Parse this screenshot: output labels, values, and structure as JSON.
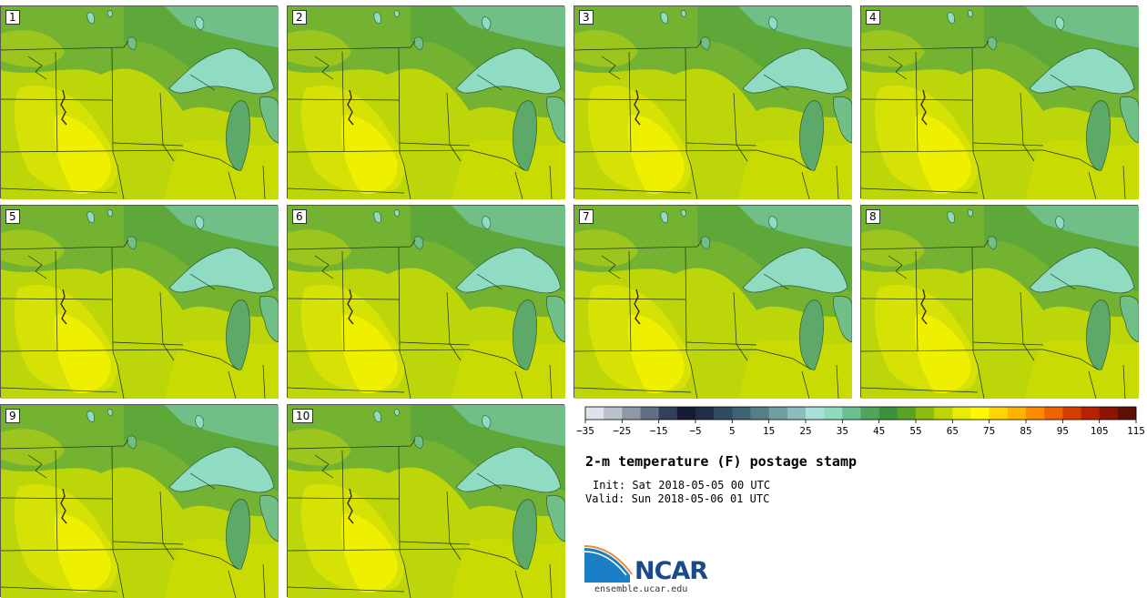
{
  "panels": [
    "1",
    "2",
    "3",
    "4",
    "5",
    "6",
    "7",
    "8",
    "9",
    "10"
  ],
  "colorbar": {
    "colors": [
      "#dde3ea",
      "#b9c2cc",
      "#8e99a8",
      "#626e82",
      "#33405a",
      "#141b33",
      "#1f2d46",
      "#2f4b5d",
      "#3e6271",
      "#547f86",
      "#6d9fa1",
      "#8cbcbb",
      "#a9e0d8",
      "#8edbbd",
      "#6cc090",
      "#4ea55b",
      "#3b9238",
      "#59a226",
      "#8dbc10",
      "#bed404",
      "#e8ec05",
      "#fff600",
      "#ffd400",
      "#ffb200",
      "#ff8a00",
      "#f06400",
      "#d83d00",
      "#b82200",
      "#8f1400",
      "#5e0f08"
    ],
    "tick_labels": [
      "−35",
      "−25",
      "−15",
      "−5",
      "5",
      "15",
      "25",
      "35",
      "45",
      "55",
      "65",
      "75",
      "85",
      "95",
      "105",
      "115"
    ]
  },
  "title": "2-m temperature (F) postage stamp",
  "init": "Init: Sat 2018-05-05 00 UTC",
  "valid": "Valid: Sun 2018-05-06 01 UTC",
  "logo": "NCAR",
  "site": "ensemble.ucar.edu"
}
